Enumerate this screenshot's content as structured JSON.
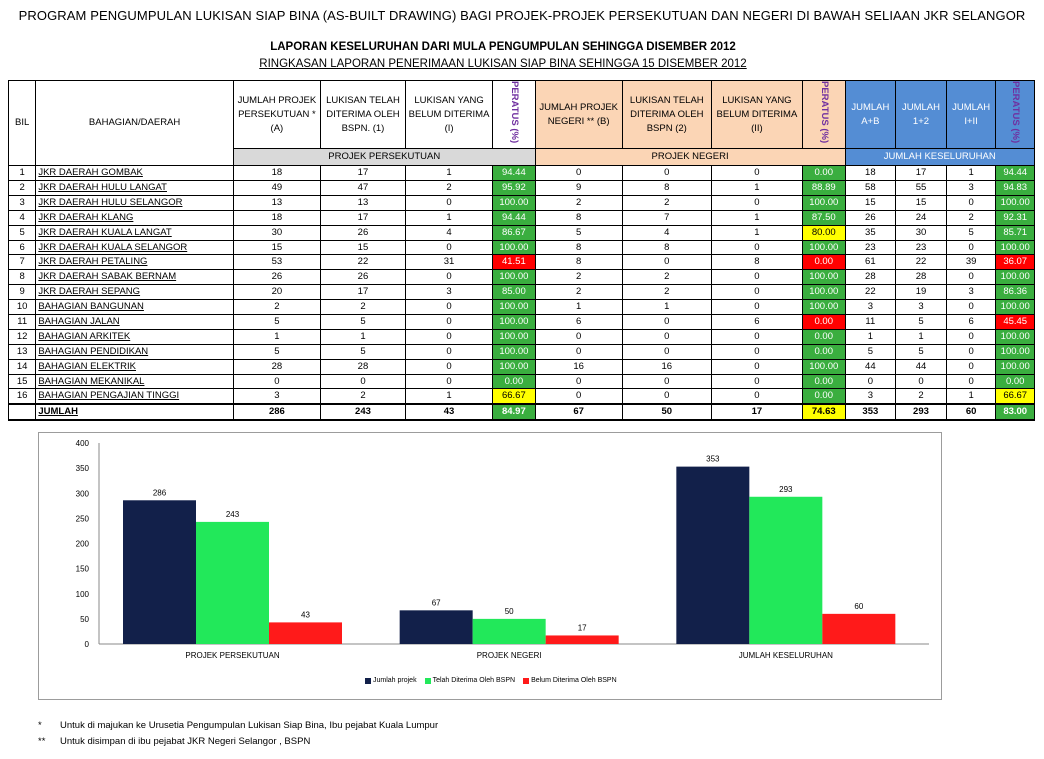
{
  "title": "PROGRAM PENGUMPULAN LUKISAN SIAP BINA (AS-BUILT DRAWING) BAGI PROJEK-PROJEK PERSEKUTUAN DAN NEGERI DI BAWAH SELIAAN JKR SELANGOR",
  "subtitle1": "LAPORAN KESELURUHAN DARI MULA PENGUMPULAN SEHINGGA DISEMBER 2012",
  "subtitle2": "RINGKASAN LAPORAN PENERIMAAN LUKISAN SIAP BINA SEHINGGA 15 DISEMBER 2012",
  "headers": {
    "bil": "BIL",
    "bahagian": "BAHAGIAN/DAERAH",
    "fed_a": "JUMLAH PROJEK PERSEKUTUAN * (A)",
    "fed_1": "LUKISAN TELAH DITERIMA OLEH BSPN. (1)",
    "fed_i": "LUKISAN YANG BELUM DITERIMA (I)",
    "peratus": "PERATUS (%)",
    "neg_b": "JUMLAH PROJEK NEGERI ** (B)",
    "neg_2": "LUKISAN TELAH DITERIMA OLEH BSPN (2)",
    "neg_ii": "LUKISAN YANG BELUM DITERIMA (II)",
    "tot_ab": "JUMLAH A+B",
    "tot_12": "JUMLAH 1+2",
    "tot_iii": "JUMLAH I+II",
    "group_fed": "PROJEK PERSEKUTUAN",
    "group_neg": "PROJEK NEGERI",
    "group_tot": "JUMLAH KESELURUHAN"
  },
  "colors": {
    "green": "#3aae3f",
    "yellow": "#ffff00",
    "red": "#ff0000",
    "orange": "#fbd5b5",
    "blue": "#548dd4"
  },
  "rows": [
    {
      "bil": "1",
      "name": "JKR DAERAH GOMBAK",
      "a": "18",
      "f1": "17",
      "fi": "1",
      "p1": "94.44",
      "c1": "g",
      "b": "0",
      "n2": "0",
      "nii": "0",
      "p2": "0.00",
      "c2": "g",
      "ab": "18",
      "t12": "17",
      "tiii": "1",
      "p3": "94.44",
      "c3": "g"
    },
    {
      "bil": "2",
      "name": "JKR DAERAH HULU LANGAT",
      "a": "49",
      "f1": "47",
      "fi": "2",
      "p1": "95.92",
      "c1": "g",
      "b": "9",
      "n2": "8",
      "nii": "1",
      "p2": "88.89",
      "c2": "g",
      "ab": "58",
      "t12": "55",
      "tiii": "3",
      "p3": "94.83",
      "c3": "g"
    },
    {
      "bil": "3",
      "name": "JKR DAERAH HULU SELANGOR",
      "a": "13",
      "f1": "13",
      "fi": "0",
      "p1": "100.00",
      "c1": "g",
      "b": "2",
      "n2": "2",
      "nii": "0",
      "p2": "100.00",
      "c2": "g",
      "ab": "15",
      "t12": "15",
      "tiii": "0",
      "p3": "100.00",
      "c3": "g"
    },
    {
      "bil": "4",
      "name": "JKR DAERAH KLANG",
      "a": "18",
      "f1": "17",
      "fi": "1",
      "p1": "94.44",
      "c1": "g",
      "b": "8",
      "n2": "7",
      "nii": "1",
      "p2": "87.50",
      "c2": "g",
      "ab": "26",
      "t12": "24",
      "tiii": "2",
      "p3": "92.31",
      "c3": "g"
    },
    {
      "bil": "5",
      "name": "JKR DAERAH KUALA LANGAT",
      "a": "30",
      "f1": "26",
      "fi": "4",
      "p1": "86.67",
      "c1": "g",
      "b": "5",
      "n2": "4",
      "nii": "1",
      "p2": "80.00",
      "c2": "y",
      "ab": "35",
      "t12": "30",
      "tiii": "5",
      "p3": "85.71",
      "c3": "g"
    },
    {
      "bil": "6",
      "name": "JKR DAERAH KUALA SELANGOR",
      "a": "15",
      "f1": "15",
      "fi": "0",
      "p1": "100.00",
      "c1": "g",
      "b": "8",
      "n2": "8",
      "nii": "0",
      "p2": "100.00",
      "c2": "g",
      "ab": "23",
      "t12": "23",
      "tiii": "0",
      "p3": "100.00",
      "c3": "g"
    },
    {
      "bil": "7",
      "name": "JKR DAERAH PETALING",
      "a": "53",
      "f1": "22",
      "fi": "31",
      "p1": "41.51",
      "c1": "r",
      "b": "8",
      "n2": "0",
      "nii": "8",
      "p2": "0.00",
      "c2": "r",
      "ab": "61",
      "t12": "22",
      "tiii": "39",
      "p3": "36.07",
      "c3": "r"
    },
    {
      "bil": "8",
      "name": "JKR DAERAH SABAK BERNAM",
      "a": "26",
      "f1": "26",
      "fi": "0",
      "p1": "100.00",
      "c1": "g",
      "b": "2",
      "n2": "2",
      "nii": "0",
      "p2": "100.00",
      "c2": "g",
      "ab": "28",
      "t12": "28",
      "tiii": "0",
      "p3": "100.00",
      "c3": "g"
    },
    {
      "bil": "9",
      "name": "JKR DAERAH SEPANG",
      "a": "20",
      "f1": "17",
      "fi": "3",
      "p1": "85.00",
      "c1": "g",
      "b": "2",
      "n2": "2",
      "nii": "0",
      "p2": "100.00",
      "c2": "g",
      "ab": "22",
      "t12": "19",
      "tiii": "3",
      "p3": "86.36",
      "c3": "g"
    },
    {
      "bil": "10",
      "name": "BAHAGIAN BANGUNAN",
      "a": "2",
      "f1": "2",
      "fi": "0",
      "p1": "100.00",
      "c1": "g",
      "b": "1",
      "n2": "1",
      "nii": "0",
      "p2": "100.00",
      "c2": "g",
      "ab": "3",
      "t12": "3",
      "tiii": "0",
      "p3": "100.00",
      "c3": "g"
    },
    {
      "bil": "11",
      "name": "BAHAGIAN JALAN",
      "a": "5",
      "f1": "5",
      "fi": "0",
      "p1": "100.00",
      "c1": "g",
      "b": "6",
      "n2": "0",
      "nii": "6",
      "p2": "0.00",
      "c2": "r",
      "ab": "11",
      "t12": "5",
      "tiii": "6",
      "p3": "45.45",
      "c3": "r"
    },
    {
      "bil": "12",
      "name": "BAHAGIAN ARKITEK",
      "a": "1",
      "f1": "1",
      "fi": "0",
      "p1": "100.00",
      "c1": "g",
      "b": "0",
      "n2": "0",
      "nii": "0",
      "p2": "0.00",
      "c2": "g",
      "ab": "1",
      "t12": "1",
      "tiii": "0",
      "p3": "100.00",
      "c3": "g"
    },
    {
      "bil": "13",
      "name": "BAHAGIAN PENDIDIKAN",
      "a": "5",
      "f1": "5",
      "fi": "0",
      "p1": "100.00",
      "c1": "g",
      "b": "0",
      "n2": "0",
      "nii": "0",
      "p2": "0.00",
      "c2": "g",
      "ab": "5",
      "t12": "5",
      "tiii": "0",
      "p3": "100.00",
      "c3": "g"
    },
    {
      "bil": "14",
      "name": "BAHAGIAN ELEKTRIK",
      "a": "28",
      "f1": "28",
      "fi": "0",
      "p1": "100.00",
      "c1": "g",
      "b": "16",
      "n2": "16",
      "nii": "0",
      "p2": "100.00",
      "c2": "g",
      "ab": "44",
      "t12": "44",
      "tiii": "0",
      "p3": "100.00",
      "c3": "g"
    },
    {
      "bil": "15",
      "name": "BAHAGIAN MEKANIKAL",
      "a": "0",
      "f1": "0",
      "fi": "0",
      "p1": "0.00",
      "c1": "g",
      "b": "0",
      "n2": "0",
      "nii": "0",
      "p2": "0.00",
      "c2": "g",
      "ab": "0",
      "t12": "0",
      "tiii": "0",
      "p3": "0.00",
      "c3": "g"
    },
    {
      "bil": "16",
      "name": "BAHAGIAN PENGAJIAN TINGGI",
      "a": "3",
      "f1": "2",
      "fi": "1",
      "p1": "66.67",
      "c1": "y",
      "b": "0",
      "n2": "0",
      "nii": "0",
      "p2": "0.00",
      "c2": "g",
      "ab": "3",
      "t12": "2",
      "tiii": "1",
      "p3": "66.67",
      "c3": "y"
    }
  ],
  "total": {
    "label": "JUMLAH",
    "a": "286",
    "f1": "243",
    "fi": "43",
    "p1": "84.97",
    "c1": "g",
    "b": "67",
    "n2": "50",
    "nii": "17",
    "p2": "74.63",
    "c2": "y",
    "ab": "353",
    "t12": "293",
    "tiii": "60",
    "p3": "83.00",
    "c3": "g"
  },
  "chart_data": {
    "type": "bar",
    "categories": [
      "PROJEK PERSEKUTUAN",
      "PROJEK NEGERI",
      "JUMLAH KESELURUHAN"
    ],
    "series": [
      {
        "name": "Jumlah projek",
        "values": [
          286,
          67,
          353
        ],
        "color": "#12204a"
      },
      {
        "name": "Telah Diterima Oleh BSPN",
        "values": [
          243,
          50,
          293
        ],
        "color": "#22e85a"
      },
      {
        "name": "Belum Diterima Oleh BSPN",
        "values": [
          43,
          17,
          60
        ],
        "color": "#ff1a1a"
      }
    ],
    "yticks": [
      0,
      50,
      100,
      150,
      200,
      250,
      300,
      350,
      400
    ],
    "ylim": [
      0,
      400
    ]
  },
  "notes": [
    {
      "mark": "*",
      "text": "Untuk di majukan ke Urusetia Pengumpulan Lukisan Siap Bina, Ibu pejabat Kuala Lumpur"
    },
    {
      "mark": "**",
      "text": "Untuk disimpan  di ibu pejabat JKR Negeri Selangor , BSPN"
    }
  ]
}
